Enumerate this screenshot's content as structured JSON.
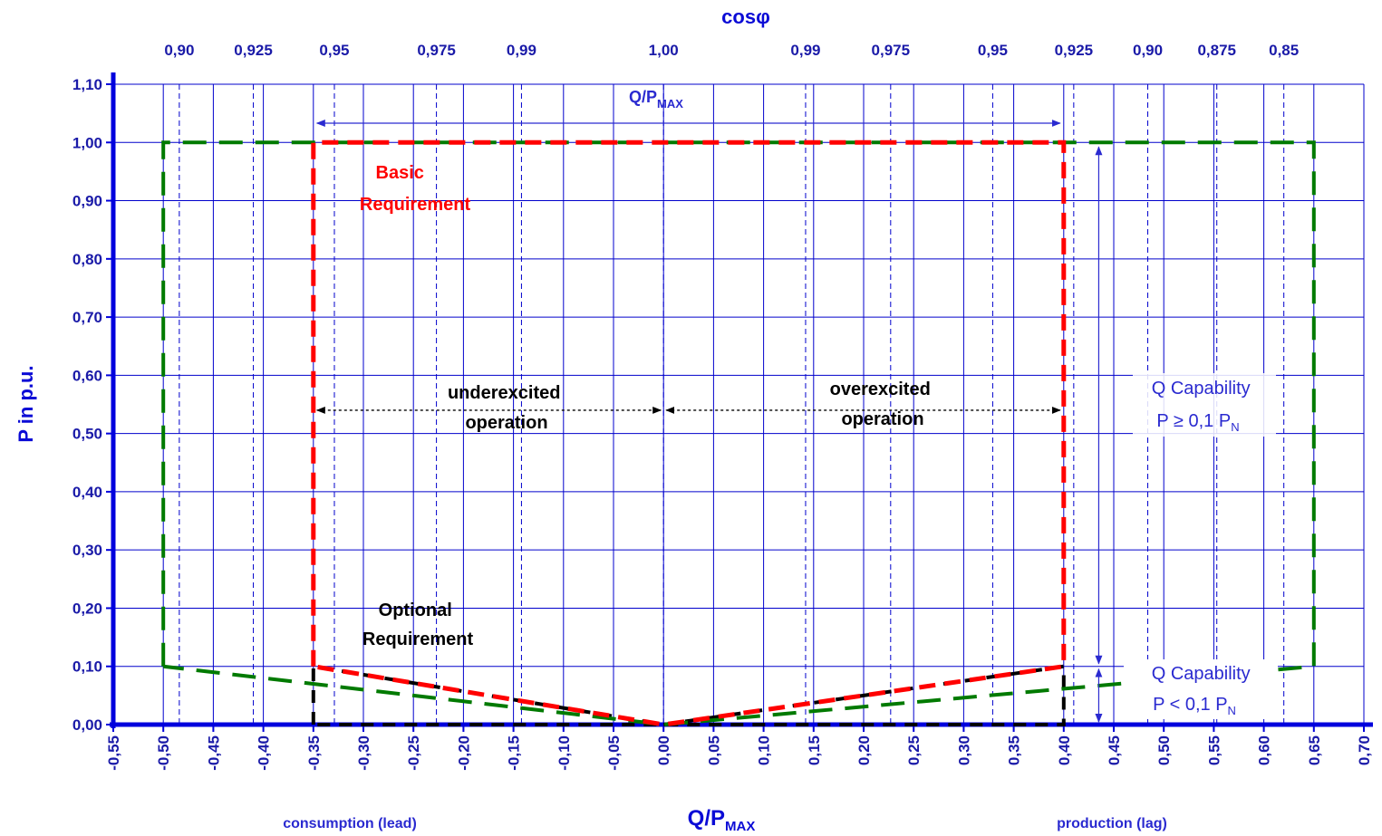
{
  "chart_data": {
    "type": "line",
    "title": "cosφ",
    "xlabel": "Q/P",
    "xlabel_sub": "MAX",
    "ylabel": "P in p.u.",
    "xlim": [
      -0.55,
      0.7
    ],
    "ylim": [
      0.0,
      1.1
    ],
    "grid": true,
    "x_ticks": [
      -0.55,
      -0.5,
      -0.45,
      -0.4,
      -0.35,
      -0.3,
      -0.25,
      -0.2,
      -0.15,
      -0.1,
      -0.05,
      0.0,
      0.05,
      0.1,
      0.15,
      0.2,
      0.25,
      0.3,
      0.35,
      0.4,
      0.45,
      0.5,
      0.55,
      0.6,
      0.65,
      0.7
    ],
    "x_tick_labels": [
      "-0,55",
      "-0,50",
      "-0,45",
      "-0,40",
      "-0,35",
      "-0,30",
      "-0,25",
      "-0,20",
      "-0,15",
      "-0,10",
      "-0,05",
      "0,00",
      "0,05",
      "0,10",
      "0,15",
      "0,20",
      "0,25",
      "0,30",
      "0,35",
      "0,40",
      "0,45",
      "0,50",
      "0,55",
      "0,60",
      "0,65",
      "0,70"
    ],
    "y_ticks": [
      0,
      0.1,
      0.2,
      0.3,
      0.4,
      0.5,
      0.6,
      0.7,
      0.8,
      0.9,
      1.0,
      1.1
    ],
    "y_tick_labels": [
      "0,00",
      "0,10",
      "0,20",
      "0,30",
      "0,40",
      "0,50",
      "0,60",
      "0,70",
      "0,80",
      "0,90",
      "1,00",
      "1,10"
    ],
    "cosphi_ticks": [
      {
        "q": -0.484,
        "label": "0,90"
      },
      {
        "q": -0.41,
        "label": "0,925"
      },
      {
        "q": -0.329,
        "label": "0,95"
      },
      {
        "q": -0.227,
        "label": "0,975"
      },
      {
        "q": -0.142,
        "label": "0,99"
      },
      {
        "q": 0.0,
        "label": "1,00"
      },
      {
        "q": 0.142,
        "label": "0,99"
      },
      {
        "q": 0.227,
        "label": "0,975"
      },
      {
        "q": 0.329,
        "label": "0,95"
      },
      {
        "q": 0.41,
        "label": "0,925"
      },
      {
        "q": 0.484,
        "label": "0,90"
      },
      {
        "q": 0.553,
        "label": "0,875"
      },
      {
        "q": 0.62,
        "label": "0,85"
      }
    ],
    "series": [
      {
        "name": "Basic Requirement",
        "color": "#ff0000",
        "style": "dashed",
        "points": [
          [
            -0.35,
            0.1
          ],
          [
            -0.35,
            1.0
          ],
          [
            0.4,
            1.0
          ],
          [
            0.4,
            0.1
          ],
          [
            0.0,
            0.0
          ],
          [
            -0.35,
            0.1
          ]
        ]
      },
      {
        "name": "Optional Requirement",
        "color": "#007a00",
        "style": "dashed",
        "points": [
          [
            -0.5,
            0.1
          ],
          [
            -0.5,
            1.0
          ],
          [
            0.65,
            1.0
          ],
          [
            0.65,
            0.1
          ],
          [
            0.0,
            0.0
          ],
          [
            -0.5,
            0.1
          ]
        ]
      },
      {
        "color": "#000000",
        "style": "dashed",
        "points": [
          [
            -0.35,
            0.0
          ],
          [
            -0.35,
            0.1
          ],
          [
            0.0,
            0.0
          ],
          [
            0.4,
            0.1
          ],
          [
            0.4,
            0.0
          ],
          [
            -0.35,
            0.0
          ]
        ]
      }
    ],
    "annotations": {
      "basic_line1": "Basic",
      "basic_line2": "Requirement",
      "optional_line1": "Optional",
      "optional_line2": "Requirement",
      "under_line1": "underexcited",
      "under_line2": "operation",
      "over_line1": "overexcited",
      "over_line2": "operation",
      "qcap_high_line1": "Q Capability",
      "qcap_high_line2": "P ≥ 0,1 P",
      "qcap_low_line1": "Q Capability",
      "qcap_low_line2": "P < 0,1 P",
      "qcap_sub": "N",
      "qp_label": "Q/P",
      "qp_sub": "MAX",
      "consumption": "consumption (lead)",
      "production": "production (lag)"
    }
  }
}
